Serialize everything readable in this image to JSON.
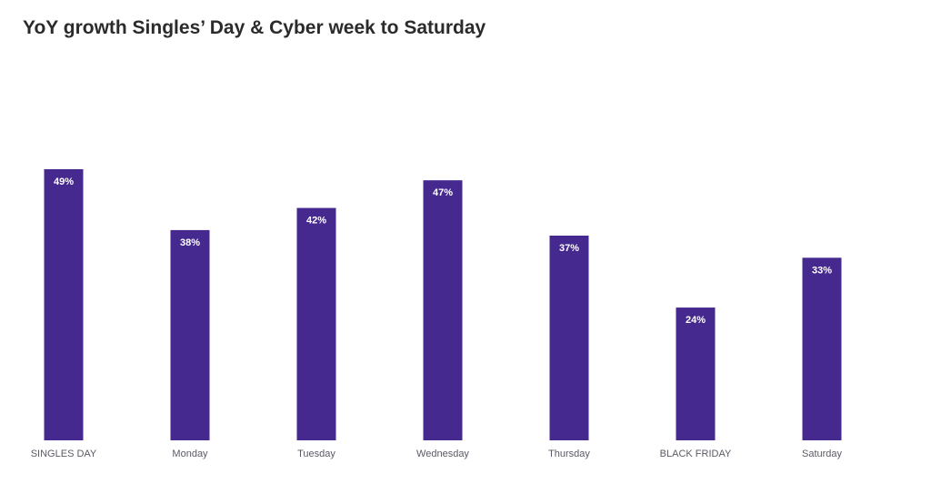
{
  "chart_data": {
    "type": "bar",
    "title": "YoY growth Singles’ Day & Cyber week to Saturday",
    "categories": [
      "SINGLES DAY",
      "Monday",
      "Tuesday",
      "Wednesday",
      "Thursday",
      "BLACK FRIDAY",
      "Saturday"
    ],
    "values": [
      49,
      38,
      42,
      47,
      37,
      24,
      33
    ],
    "value_labels": [
      "49%",
      "38%",
      "42%",
      "47%",
      "37%",
      "24%",
      "33%"
    ],
    "ylim": [
      0,
      49
    ],
    "grid": false,
    "legend": "none",
    "colors": {
      "bar": "#45298f",
      "bar_label": "#ffffff",
      "category_label": "#5a5a66",
      "title": "#2b2b2b"
    }
  }
}
